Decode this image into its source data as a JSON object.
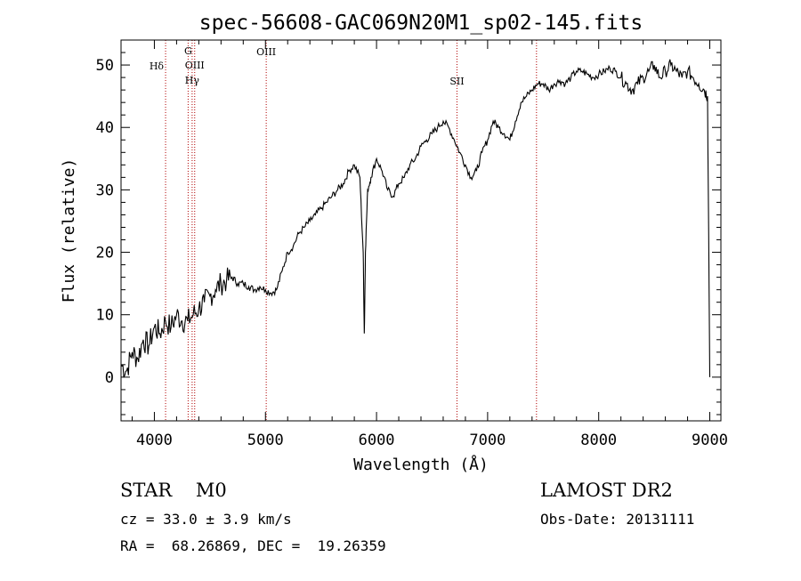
{
  "chart_data": {
    "type": "line",
    "title": "spec-56608-GAC069N20M1_sp02-145.fits",
    "xlabel": "Wavelength (Å)",
    "ylabel": "Flux (relative)",
    "xlim": [
      3700,
      9100
    ],
    "ylim": [
      -7,
      54
    ],
    "x_ticks": [
      4000,
      5000,
      6000,
      7000,
      8000,
      9000
    ],
    "y_ticks": [
      0,
      10,
      20,
      30,
      40,
      50
    ],
    "grid": false,
    "series": [
      {
        "name": "spectrum",
        "x": [
          3700,
          3750,
          3800,
          3850,
          3900,
          3950,
          4000,
          4050,
          4100,
          4150,
          4200,
          4250,
          4300,
          4350,
          4400,
          4450,
          4500,
          4550,
          4600,
          4650,
          4700,
          4750,
          4800,
          4850,
          4900,
          4950,
          5000,
          5050,
          5100,
          5150,
          5200,
          5250,
          5300,
          5350,
          5400,
          5450,
          5500,
          5550,
          5600,
          5650,
          5700,
          5750,
          5800,
          5850,
          5880,
          5890,
          5900,
          5920,
          5950,
          6000,
          6050,
          6100,
          6150,
          6200,
          6250,
          6300,
          6350,
          6400,
          6450,
          6500,
          6550,
          6600,
          6650,
          6700,
          6750,
          6800,
          6850,
          6900,
          6950,
          7000,
          7050,
          7100,
          7150,
          7200,
          7250,
          7300,
          7350,
          7400,
          7450,
          7500,
          7550,
          7600,
          7650,
          7700,
          7750,
          7800,
          7850,
          7900,
          7950,
          8000,
          8050,
          8100,
          8150,
          8200,
          8250,
          8300,
          8350,
          8400,
          8450,
          8500,
          8550,
          8600,
          8650,
          8700,
          8750,
          8800,
          8850,
          8900,
          8950,
          8980,
          9000
        ],
        "values": [
          2,
          1,
          4,
          3,
          6,
          5,
          8,
          7,
          9,
          8,
          10,
          9,
          9,
          10,
          11,
          12,
          13,
          14,
          15,
          15.5,
          16,
          15,
          15,
          14.5,
          14,
          14.5,
          14,
          13.5,
          14,
          17,
          20,
          21,
          23,
          24,
          25,
          26,
          27,
          28,
          29,
          30,
          31,
          33,
          34,
          32,
          20,
          7,
          20,
          30,
          32,
          35,
          33,
          30,
          29,
          31,
          32,
          34,
          35,
          37,
          38,
          39,
          40,
          41,
          40,
          38,
          36,
          34,
          32,
          33,
          36,
          38,
          41,
          40,
          39,
          38,
          41,
          44,
          45,
          46,
          47,
          47,
          46,
          47,
          47.5,
          47,
          48,
          49,
          49,
          48.5,
          48,
          48.5,
          49,
          49.5,
          49,
          48,
          47,
          46,
          47,
          48,
          49,
          50,
          48,
          49,
          50,
          49,
          48,
          49,
          48,
          47,
          46,
          45,
          0
        ]
      }
    ],
    "line_markers": [
      {
        "label": "Hδ",
        "x": 4101
      },
      {
        "label": "G",
        "x": 4304
      },
      {
        "label": "OIII",
        "x": 4363
      },
      {
        "label": "Hγ",
        "x": 4340
      },
      {
        "label": "OIII",
        "x": 5007
      },
      {
        "label": "SII",
        "x": 6724
      },
      {
        "label": "",
        "x": 7440
      }
    ]
  },
  "info": {
    "class_line": "STAR    M0",
    "survey": "LAMOST DR2",
    "cz": "cz = 33.0 ± 3.9 km/s",
    "obs_date": "Obs-Date: 20131111",
    "coords": "RA =  68.26869, DEC =  19.26359"
  },
  "colors": {
    "line": "#000000",
    "marker": "#b00000",
    "axis": "#000000"
  }
}
